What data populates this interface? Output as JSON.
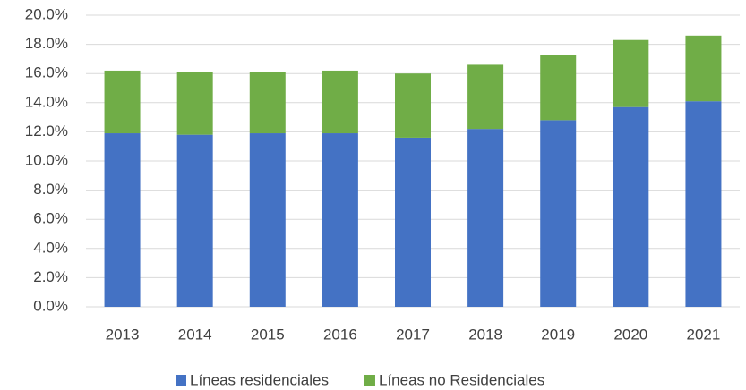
{
  "chart_data": {
    "type": "stacked_bar",
    "categories": [
      "2013",
      "2014",
      "2015",
      "2016",
      "2017",
      "2018",
      "2019",
      "2020",
      "2021"
    ],
    "series": [
      {
        "name": "Líneas residenciales",
        "color": "#4472c4",
        "values": [
          11.9,
          11.8,
          11.9,
          11.9,
          11.6,
          12.2,
          12.8,
          13.7,
          14.1
        ]
      },
      {
        "name": "Líneas no Residenciales",
        "color": "#70ad47",
        "values": [
          4.3,
          4.3,
          4.2,
          4.3,
          4.4,
          4.4,
          4.5,
          4.6,
          4.5
        ]
      }
    ],
    "ylim": [
      0,
      20
    ],
    "yticks": [
      {
        "value": 0,
        "label": "0.0%"
      },
      {
        "value": 2,
        "label": "2.0%"
      },
      {
        "value": 4,
        "label": "4.0%"
      },
      {
        "value": 6,
        "label": "6.0%"
      },
      {
        "value": 8,
        "label": "8.0%"
      },
      {
        "value": 10,
        "label": "10.0%"
      },
      {
        "value": 12,
        "label": "12.0%"
      },
      {
        "value": 14,
        "label": "14.0%"
      },
      {
        "value": 16,
        "label": "16.0%"
      },
      {
        "value": 18,
        "label": "18.0%"
      },
      {
        "value": 20,
        "label": "20.0%"
      }
    ],
    "grid": true,
    "legend": "bottom"
  }
}
